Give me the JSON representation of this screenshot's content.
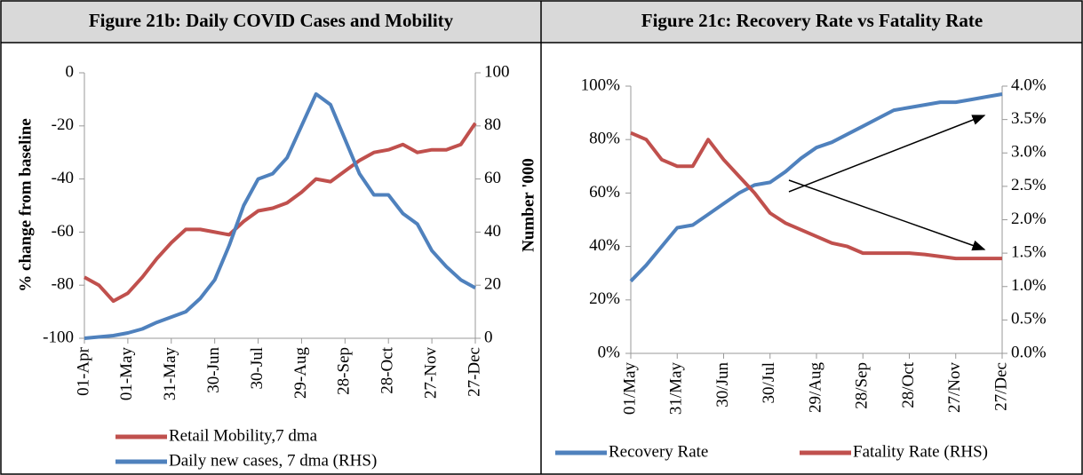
{
  "chart_data": [
    {
      "type": "line",
      "title": "Figure 21b: Daily COVID Cases and Mobility",
      "y_label": "% change from baseline",
      "y2_label": "Number '000",
      "categories": [
        "01-Apr",
        null,
        null,
        "01-May",
        null,
        null,
        "31-May",
        null,
        null,
        "30-Jun",
        null,
        null,
        "30-Jul",
        null,
        null,
        "29-Aug",
        null,
        null,
        "28-Sep",
        null,
        null,
        "28-Oct",
        null,
        null,
        "27-Nov",
        null,
        null,
        "27-Dec"
      ],
      "series": [
        {
          "name": "Retail Mobility,7 dma",
          "color": "#c0504d",
          "axis": "y",
          "values": [
            -77,
            -80,
            -86,
            -83,
            -77,
            -70,
            -64,
            -59,
            -59,
            -60,
            -61,
            -56,
            -52,
            -51,
            -49,
            -45,
            -40,
            -41,
            -37,
            -33,
            -30,
            -29,
            -27,
            -30,
            -29,
            -29,
            -27,
            -19
          ]
        },
        {
          "name": "Daily new cases, 7 dma (RHS)",
          "color": "#4f81bd",
          "axis": "y2",
          "values": [
            0,
            0.5,
            1,
            2,
            3.5,
            6,
            8,
            10,
            15,
            22,
            35,
            50,
            60,
            62,
            68,
            80,
            92,
            88,
            75,
            62,
            54,
            54,
            47,
            43,
            33,
            27,
            22,
            19
          ]
        }
      ],
      "ylim": [
        -100,
        0
      ],
      "yticks": [
        -100,
        -80,
        -60,
        -40,
        -20,
        0
      ],
      "y2lim": [
        0,
        100
      ],
      "y2ticks": [
        0,
        20,
        40,
        60,
        80,
        100
      ]
    },
    {
      "type": "line",
      "title": "Figure 21c: Recovery Rate vs Fatality Rate",
      "categories": [
        "01/May",
        null,
        null,
        "31/May",
        null,
        null,
        "30/Jun",
        null,
        null,
        "30/Jul",
        null,
        null,
        "29/Aug",
        null,
        null,
        "28/Sep",
        null,
        null,
        "28/Oct",
        null,
        null,
        "27/Nov",
        null,
        null,
        "27/Dec"
      ],
      "series": [
        {
          "name": "Recovery Rate",
          "color": "#4f81bd",
          "axis": "y",
          "values": [
            27,
            33,
            40,
            47,
            48,
            52,
            56,
            60,
            63,
            64,
            68,
            73,
            77,
            79,
            82,
            85,
            88,
            91,
            92,
            93,
            94,
            94,
            95,
            96,
            97
          ]
        },
        {
          "name": "Fatality Rate (RHS)",
          "color": "#c0504d",
          "axis": "y2",
          "values": [
            3.3,
            3.2,
            2.9,
            2.8,
            2.8,
            3.2,
            2.9,
            2.65,
            2.4,
            2.1,
            1.95,
            1.85,
            1.75,
            1.65,
            1.6,
            1.5,
            1.5,
            1.5,
            1.5,
            1.48,
            1.45,
            1.42,
            1.42,
            1.42,
            1.42
          ]
        }
      ],
      "ylim": [
        0,
        100
      ],
      "yticks": [
        {
          "value": 0,
          "label": "0%"
        },
        {
          "value": 20,
          "label": "20%"
        },
        {
          "value": 40,
          "label": "40%"
        },
        {
          "value": 60,
          "label": "60%"
        },
        {
          "value": 80,
          "label": "80%"
        },
        {
          "value": 100,
          "label": "100%"
        }
      ],
      "y2lim": [
        0,
        4
      ],
      "y2ticks": [
        {
          "value": 0,
          "label": "0.0%"
        },
        {
          "value": 0.5,
          "label": "0.5%"
        },
        {
          "value": 1,
          "label": "1.0%"
        },
        {
          "value": 1.5,
          "label": "1.5%"
        },
        {
          "value": 2,
          "label": "2.0%"
        },
        {
          "value": 2.5,
          "label": "2.5%"
        },
        {
          "value": 3,
          "label": "3.0%"
        },
        {
          "value": 3.5,
          "label": "3.5%"
        },
        {
          "value": 4,
          "label": "4.0%"
        }
      ]
    }
  ]
}
